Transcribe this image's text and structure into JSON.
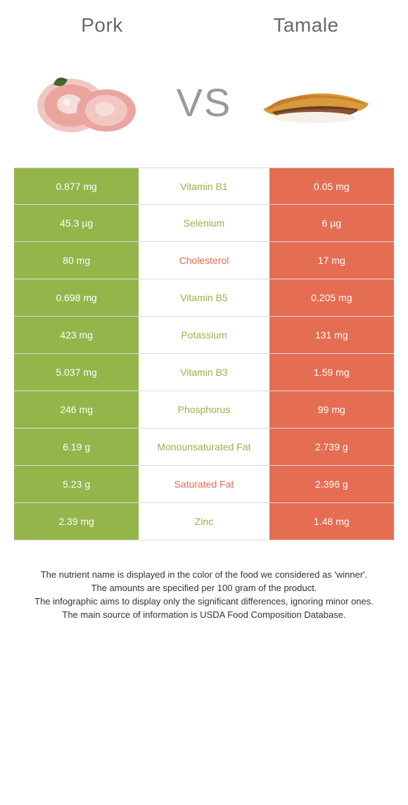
{
  "colors": {
    "pork": "#94b54a",
    "tamale": "#e46d52",
    "title": "#696969",
    "vs": "#9a9a9a",
    "footer": "#333333",
    "row_border": "#dcdcdc"
  },
  "food_left": {
    "name": "Pork"
  },
  "food_right": {
    "name": "Tamale"
  },
  "vs_text": "VS",
  "table": {
    "type": "table",
    "rows": [
      {
        "label": "Vitamin B1",
        "left": "0.877 mg",
        "right": "0.05 mg",
        "winner": "left"
      },
      {
        "label": "Selenium",
        "left": "45.3 µg",
        "right": "6 µg",
        "winner": "left"
      },
      {
        "label": "Cholesterol",
        "left": "80 mg",
        "right": "17 mg",
        "winner": "right"
      },
      {
        "label": "Vitamin B5",
        "left": "0.698 mg",
        "right": "0.205 mg",
        "winner": "left"
      },
      {
        "label": "Potassium",
        "left": "423 mg",
        "right": "131 mg",
        "winner": "left"
      },
      {
        "label": "Vitamin B3",
        "left": "5.037 mg",
        "right": "1.59 mg",
        "winner": "left"
      },
      {
        "label": "Phosphorus",
        "left": "246 mg",
        "right": "99 mg",
        "winner": "left"
      },
      {
        "label": "Monounsaturated Fat",
        "left": "6.19 g",
        "right": "2.739 g",
        "winner": "left"
      },
      {
        "label": "Saturated Fat",
        "left": "5.23 g",
        "right": "2.396 g",
        "winner": "right"
      },
      {
        "label": "Zinc",
        "left": "2.39 mg",
        "right": "1.48 mg",
        "winner": "left"
      }
    ]
  },
  "footer": {
    "line1": "The nutrient name is displayed in the color of the food we considered as 'winner'.",
    "line2": "The amounts are specified per 100 gram of the product.",
    "line3": "The infographic aims to display only the significant differences, ignoring minor ones.",
    "line4": "The main source of information is USDA Food Composition Database."
  }
}
